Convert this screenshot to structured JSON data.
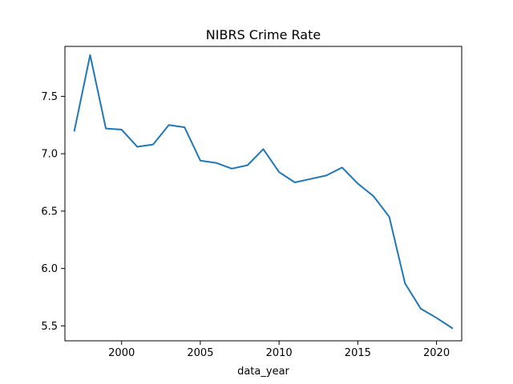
{
  "chart_data": {
    "type": "line",
    "title": "NIBRS Crime Rate",
    "xlabel": "data_year",
    "ylabel": "",
    "xlim": [
      1996.4,
      2021.6
    ],
    "ylim": [
      5.37,
      7.935
    ],
    "xticks": [
      2000,
      2005,
      2010,
      2015,
      2020
    ],
    "yticks": [
      5.5,
      6.0,
      6.5,
      7.0,
      7.5
    ],
    "xtick_labels": [
      "2000",
      "2005",
      "2010",
      "2015",
      "2020"
    ],
    "ytick_labels": [
      "5.5",
      "6.0",
      "6.5",
      "7.0",
      "7.5"
    ],
    "grid": false,
    "legend": "none",
    "line_color": "#1f77b4",
    "series": [
      {
        "x": [
          1997,
          1998,
          1999,
          2000,
          2001,
          2002,
          2003,
          2004,
          2005,
          2006,
          2007,
          2008,
          2009,
          2010,
          2011,
          2012,
          2013,
          2014,
          2015,
          2016,
          2017,
          2018,
          2019,
          2020,
          2021
        ],
        "values": [
          7.2,
          7.86,
          7.22,
          7.21,
          7.06,
          7.08,
          7.25,
          7.23,
          6.94,
          6.92,
          6.87,
          6.9,
          7.04,
          6.84,
          6.75,
          6.78,
          6.81,
          6.88,
          6.74,
          6.63,
          6.45,
          5.87,
          5.65,
          5.57,
          5.48
        ]
      }
    ]
  }
}
